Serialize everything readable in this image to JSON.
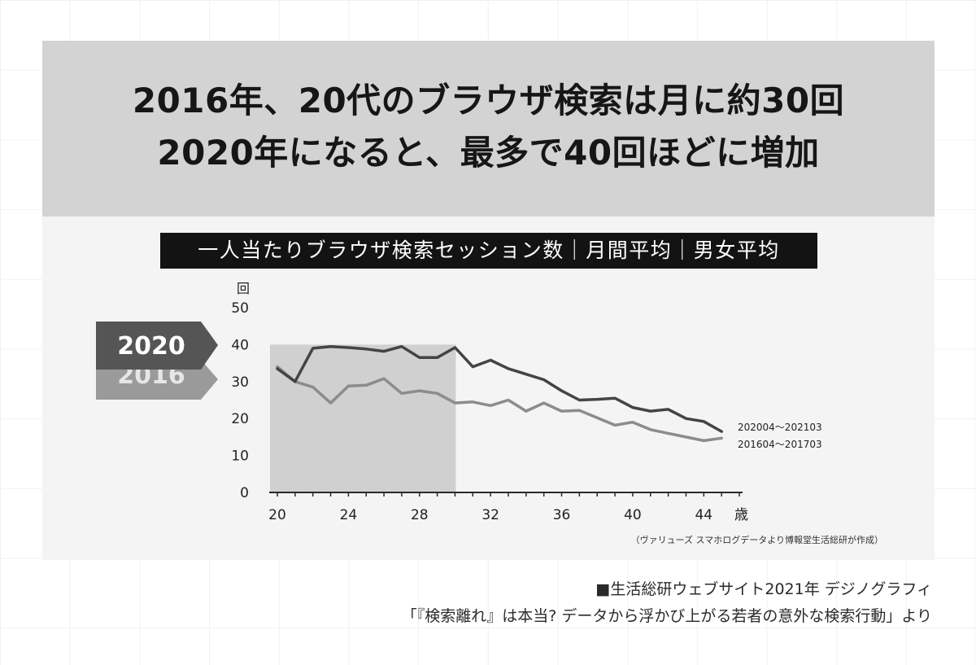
{
  "headline": {
    "line1": "2016年、20代のブラウザ検索は月に約30回",
    "line2": "2020年になると、最多で40回ほどに増加"
  },
  "subtitle": "一人当たりブラウザ検索セッション数｜月間平均｜男女平均",
  "badges": {
    "year_2020": "2020",
    "year_2016": "2016"
  },
  "source_note": "（ヴァリューズ スマホログデータより博報堂生活総研が作成）",
  "footer": {
    "line1": "■生活総研ウェブサイト2021年 デジノグラフィ",
    "line2": "「『検索離れ』は本当? データから浮かび上がる若者の意外な検索行動」より"
  },
  "colors": {
    "series_2020": "#444444",
    "series_2016": "#8c8c8c",
    "highlight": "#d0d0d0",
    "badge_2020": "#555555",
    "badge_2016": "#9a9a9a"
  },
  "chart_data": {
    "type": "line",
    "title": "一人当たりブラウザ検索セッション数｜月間平均｜男女平均",
    "ylabel": "回",
    "xlabel": "歳",
    "xlim": [
      20,
      46
    ],
    "ylim": [
      0,
      50
    ],
    "xticks": [
      "20",
      "24",
      "28",
      "32",
      "36",
      "40",
      "44"
    ],
    "yticks": [
      "50",
      "40",
      "30",
      "20",
      "10",
      "0"
    ],
    "grid": false,
    "highlight_region": {
      "x": [
        20,
        30
      ],
      "y": [
        0,
        40
      ]
    },
    "x": [
      20,
      21,
      22,
      23,
      24,
      25,
      26,
      27,
      28,
      29,
      30,
      31,
      32,
      33,
      34,
      35,
      36,
      37,
      38,
      39,
      40,
      41,
      42,
      43,
      44,
      45
    ],
    "series": [
      {
        "name": "202004～202103",
        "values": [
          33.5,
          30,
          39,
          39.5,
          39.2,
          38.8,
          38.2,
          39.5,
          36.5,
          36.5,
          39.2,
          34,
          35.8,
          33.5,
          32,
          30.5,
          27.5,
          25,
          25.2,
          25.5,
          23,
          22,
          22.5,
          20,
          19.2,
          16.5
        ]
      },
      {
        "name": "201604～201703",
        "values": [
          34,
          30,
          28.5,
          24.2,
          28.8,
          29,
          30.8,
          26.8,
          27.5,
          26.8,
          24.2,
          24.5,
          23.5,
          25,
          22,
          24.2,
          22,
          22.2,
          20.2,
          18.2,
          19,
          17,
          16,
          15,
          14,
          14.7
        ]
      }
    ]
  }
}
